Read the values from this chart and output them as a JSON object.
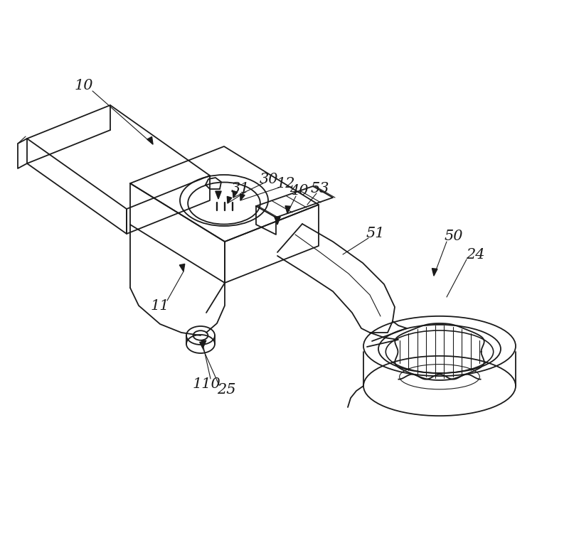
{
  "bg_color": "#ffffff",
  "line_color": "#1a1a1a",
  "lw": 1.3,
  "tlw": 0.8,
  "font_size": 15
}
